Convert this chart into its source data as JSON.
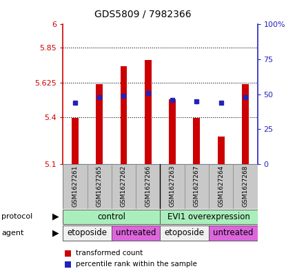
{
  "title": "GDS5809 / 7982366",
  "samples": [
    "GSM1627261",
    "GSM1627265",
    "GSM1627262",
    "GSM1627266",
    "GSM1627263",
    "GSM1627267",
    "GSM1627264",
    "GSM1627268"
  ],
  "bar_values": [
    5.395,
    5.615,
    5.73,
    5.77,
    5.515,
    5.395,
    5.275,
    5.615
  ],
  "blue_dot_pct": [
    44,
    48,
    49,
    51,
    46,
    45,
    44,
    48
  ],
  "ymin": 5.1,
  "ymax": 6.0,
  "yticks": [
    5.1,
    5.4,
    5.625,
    5.85,
    6.0
  ],
  "ytick_labels": [
    "5.1",
    "5.4",
    "5.625",
    "5.85",
    "6"
  ],
  "right_yticks_pct": [
    0,
    25,
    50,
    75,
    100
  ],
  "right_ytick_labels": [
    "0",
    "25",
    "50",
    "75",
    "100%"
  ],
  "bar_color": "#cc0000",
  "dot_color": "#2222bb",
  "bar_bottom": 5.1,
  "protocol_color": "#aaeebb",
  "agent_white_color": "#f0f0f0",
  "agent_pink_color": "#dd66dd",
  "sample_bg_color": "#c8c8c8",
  "legend_red_label": "transformed count",
  "legend_blue_label": "percentile rank within the sample",
  "grid_values": [
    5.4,
    5.625,
    5.85
  ],
  "fig_width": 4.15,
  "fig_height": 3.93,
  "dpi": 100
}
